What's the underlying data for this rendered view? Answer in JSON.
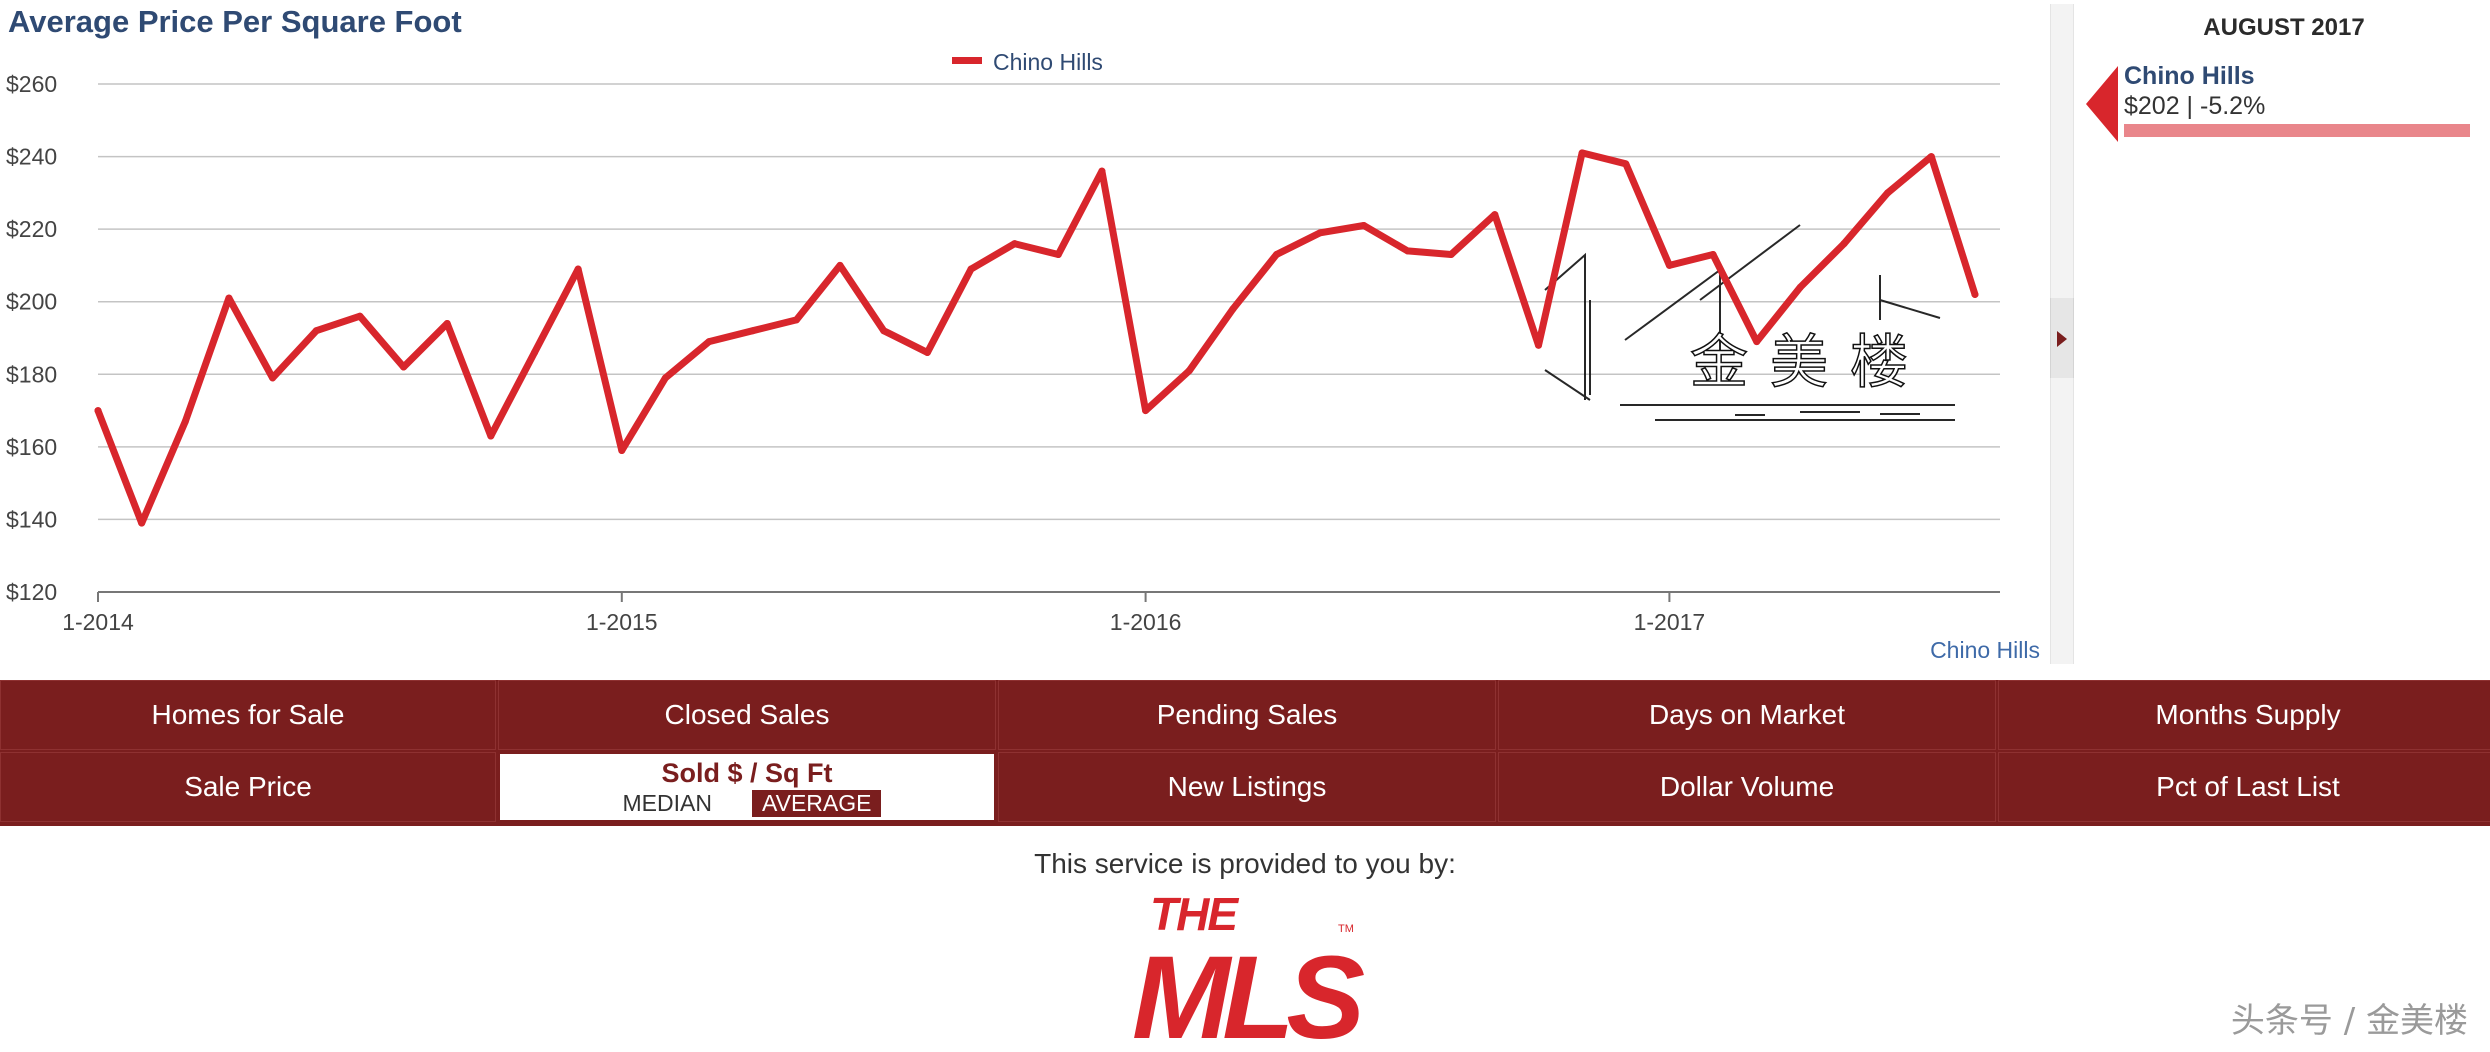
{
  "title": "Average Price Per Square Foot",
  "legend": {
    "label": "Chino Hills",
    "color": "#d8262c"
  },
  "credit_label": "Chino Hills",
  "chart_data": {
    "type": "line",
    "title": "Average Price Per Square Foot",
    "xlabel": "",
    "ylabel": "",
    "ylim": [
      120,
      260
    ],
    "y_ticks": [
      "$120",
      "$140",
      "$160",
      "$180",
      "$200",
      "$220",
      "$240",
      "$260"
    ],
    "y_tick_values": [
      120,
      140,
      160,
      180,
      200,
      220,
      240,
      260
    ],
    "x_tick_labels": [
      "1-2014",
      "1-2015",
      "1-2016",
      "1-2017"
    ],
    "x_tick_months": [
      "2014-01",
      "2015-01",
      "2016-01",
      "2017-01"
    ],
    "grid": true,
    "legend_position": "top-center",
    "x": [
      "2014-01",
      "2014-02",
      "2014-03",
      "2014-04",
      "2014-05",
      "2014-06",
      "2014-07",
      "2014-08",
      "2014-09",
      "2014-10",
      "2014-11",
      "2014-12",
      "2015-01",
      "2015-02",
      "2015-03",
      "2015-04",
      "2015-05",
      "2015-06",
      "2015-07",
      "2015-08",
      "2015-09",
      "2015-10",
      "2015-11",
      "2015-12",
      "2016-01",
      "2016-02",
      "2016-03",
      "2016-04",
      "2016-05",
      "2016-06",
      "2016-07",
      "2016-08",
      "2016-09",
      "2016-10",
      "2016-11",
      "2016-12",
      "2017-01",
      "2017-02",
      "2017-03",
      "2017-04",
      "2017-05",
      "2017-06",
      "2017-07",
      "2017-08"
    ],
    "series": [
      {
        "name": "Chino Hills",
        "color": "#d8262c",
        "values": [
          170,
          139,
          167,
          201,
          179,
          192,
          196,
          182,
          194,
          163,
          186,
          209,
          159,
          179,
          189,
          192,
          195,
          210,
          192,
          186,
          209,
          216,
          213,
          236,
          170,
          181,
          198,
          213,
          219,
          221,
          214,
          213,
          224,
          188,
          241,
          238,
          210,
          213,
          189,
          204,
          216,
          230,
          240,
          202
        ]
      }
    ]
  },
  "side_panel": {
    "date": "AUGUST 2017",
    "name": "Chino Hills",
    "value_text": "$202 | -5.2%",
    "bar_color": "#e9868b"
  },
  "nav": {
    "row1": [
      "Homes for Sale",
      "Closed Sales",
      "Pending Sales",
      "Days on Market",
      "Months Supply"
    ],
    "sale_price": "Sale Price",
    "sold_sqft": "Sold $ / Sq Ft",
    "median": "MEDIAN",
    "average": "AVERAGE",
    "new_listings": "New Listings",
    "dollar_volume": "Dollar Volume",
    "pct_last_list": "Pct of Last List"
  },
  "footer": {
    "provided_by": "This service is provided to you by:",
    "logo_top": "THE",
    "logo_main": "MLS",
    "logo_tm": "TM",
    "watermark": "金美楼",
    "corner_mark": "头条号 / 金美楼"
  },
  "colors": {
    "nav_bg": "#7a1e1e",
    "title": "#2f4a73",
    "line": "#d8262c"
  }
}
